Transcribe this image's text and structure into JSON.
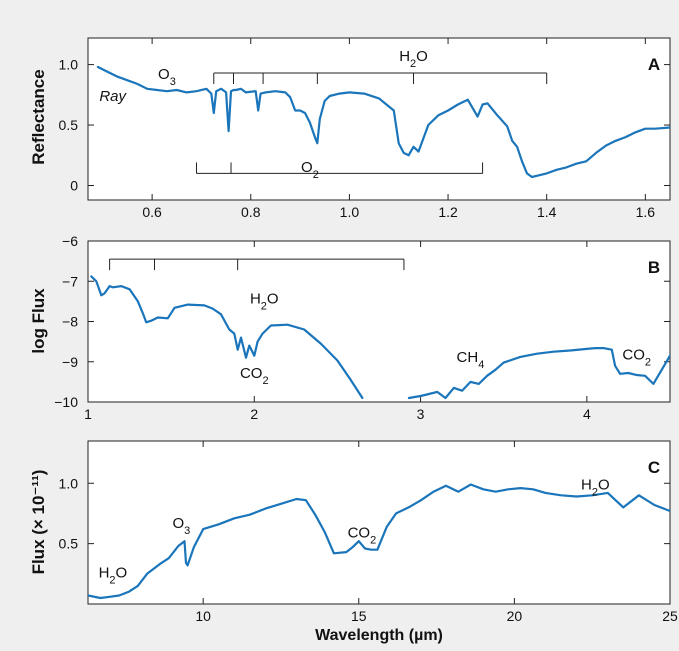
{
  "chart_data": [
    {
      "panel": "A",
      "type": "line",
      "ylabel": "Reflectance",
      "xlim": [
        0.47,
        1.65
      ],
      "ylim": [
        -0.12,
        1.22
      ],
      "xticks": [
        0.6,
        0.8,
        1.0,
        1.2,
        1.4,
        1.6
      ],
      "xtick_labels": [
        "0.6",
        "0.8",
        "1.0",
        "1.2",
        "1.4",
        "1.6"
      ],
      "yticks": [
        0,
        0.5,
        1.0
      ],
      "ytick_labels": [
        "0",
        "0.5",
        "1.0"
      ],
      "series": [
        {
          "x": [
            0.49,
            0.51,
            0.53,
            0.55,
            0.57,
            0.59,
            0.61,
            0.63,
            0.65,
            0.67,
            0.69,
            0.71,
            0.72,
            0.725,
            0.73,
            0.74,
            0.75,
            0.755,
            0.76,
            0.765,
            0.77,
            0.78,
            0.79,
            0.81,
            0.815,
            0.82,
            0.83,
            0.85,
            0.87,
            0.88,
            0.89,
            0.9,
            0.91,
            0.92,
            0.93,
            0.935,
            0.94,
            0.95,
            0.96,
            0.98,
            1.0,
            1.03,
            1.06,
            1.09,
            1.1,
            1.11,
            1.12,
            1.13,
            1.14,
            1.16,
            1.18,
            1.2,
            1.22,
            1.24,
            1.26,
            1.27,
            1.28,
            1.3,
            1.32,
            1.33,
            1.34,
            1.35,
            1.36,
            1.37,
            1.38,
            1.4,
            1.42,
            1.44,
            1.46,
            1.48,
            1.5,
            1.52,
            1.54,
            1.56,
            1.58,
            1.6,
            1.62,
            1.65
          ],
          "y": [
            0.98,
            0.94,
            0.9,
            0.87,
            0.84,
            0.8,
            0.79,
            0.78,
            0.79,
            0.77,
            0.78,
            0.8,
            0.76,
            0.6,
            0.78,
            0.8,
            0.77,
            0.45,
            0.78,
            0.79,
            0.79,
            0.8,
            0.77,
            0.78,
            0.62,
            0.76,
            0.77,
            0.78,
            0.77,
            0.73,
            0.62,
            0.62,
            0.6,
            0.52,
            0.4,
            0.35,
            0.55,
            0.7,
            0.74,
            0.76,
            0.77,
            0.76,
            0.72,
            0.62,
            0.35,
            0.27,
            0.25,
            0.32,
            0.28,
            0.5,
            0.58,
            0.62,
            0.67,
            0.71,
            0.57,
            0.67,
            0.68,
            0.58,
            0.49,
            0.37,
            0.32,
            0.2,
            0.1,
            0.07,
            0.08,
            0.1,
            0.13,
            0.15,
            0.18,
            0.2,
            0.27,
            0.33,
            0.37,
            0.4,
            0.44,
            0.47,
            0.47,
            0.48
          ]
        }
      ],
      "annotations": [
        {
          "text": "Ray",
          "x": 0.52,
          "y": 0.7,
          "italic": true
        },
        {
          "text": "O",
          "sub": "3",
          "x": 0.63,
          "y": 0.88
        },
        {
          "text": "H",
          "sub": "2",
          "tail": "O",
          "x": 1.13,
          "y": 1.03
        },
        {
          "text": "O",
          "sub": "2",
          "x": 0.92,
          "y": 0.11
        }
      ],
      "brackets": [
        {
          "span": [
            0.725,
            1.4
          ],
          "ticks": [
            0.725,
            0.765,
            0.825,
            0.935,
            1.13,
            1.4
          ],
          "y": 0.93,
          "direction": "down"
        },
        {
          "span": [
            0.69,
            1.27
          ],
          "ticks": [
            0.69,
            0.76,
            1.27
          ],
          "y": 0.1,
          "direction": "up"
        }
      ],
      "letter": "A"
    },
    {
      "panel": "B",
      "type": "line",
      "ylabel": "log Flux",
      "xlim": [
        1.0,
        4.5
      ],
      "ylim": [
        -10,
        -6
      ],
      "xticks": [
        1,
        2,
        3,
        4
      ],
      "xtick_labels": [
        "1",
        "2",
        "3",
        "4"
      ],
      "yticks": [
        -10,
        -9,
        -8,
        -7,
        -6
      ],
      "ytick_labels": [
        "−10",
        "−9",
        "−8",
        "−7",
        "−6"
      ],
      "series": [
        {
          "x": [
            1.02,
            1.05,
            1.08,
            1.1,
            1.13,
            1.15,
            1.2,
            1.25,
            1.3,
            1.33,
            1.35,
            1.38,
            1.42,
            1.48,
            1.52,
            1.6,
            1.7,
            1.75,
            1.8,
            1.85,
            1.88,
            1.9,
            1.92,
            1.95,
            1.97,
            2.0,
            2.02,
            2.05,
            2.1,
            2.2,
            2.3,
            2.4,
            2.5,
            2.58,
            2.65
          ],
          "y": [
            -6.88,
            -7.0,
            -7.35,
            -7.3,
            -7.12,
            -7.15,
            -7.12,
            -7.2,
            -7.5,
            -7.8,
            -8.02,
            -7.98,
            -7.9,
            -7.92,
            -7.66,
            -7.58,
            -7.6,
            -7.68,
            -7.82,
            -8.2,
            -8.3,
            -8.7,
            -8.4,
            -8.9,
            -8.6,
            -8.85,
            -8.5,
            -8.3,
            -8.1,
            -8.08,
            -8.2,
            -8.55,
            -8.97,
            -9.45,
            -9.9
          ]
        },
        {
          "x": [
            2.93,
            3.0,
            3.05,
            3.1,
            3.15,
            3.2,
            3.25,
            3.3,
            3.35,
            3.4,
            3.45,
            3.5,
            3.6,
            3.7,
            3.8,
            3.9,
            4.0,
            4.05,
            4.1,
            4.15,
            4.17,
            4.2,
            4.25,
            4.3,
            4.35,
            4.4,
            4.45,
            4.5
          ],
          "y": [
            -9.9,
            -9.85,
            -9.8,
            -9.75,
            -9.9,
            -9.65,
            -9.72,
            -9.5,
            -9.55,
            -9.35,
            -9.2,
            -9.02,
            -8.88,
            -8.8,
            -8.75,
            -8.72,
            -8.68,
            -8.66,
            -8.66,
            -8.7,
            -9.1,
            -9.3,
            -9.28,
            -9.33,
            -9.35,
            -9.55,
            -9.2,
            -8.85
          ]
        }
      ],
      "annotations": [
        {
          "text": "H",
          "sub": "2",
          "tail": "O",
          "x": 2.06,
          "y": -7.55
        },
        {
          "text": "CO",
          "sub": "2",
          "x": 2.0,
          "y": -9.4
        },
        {
          "text": "CH",
          "sub": "4",
          "x": 3.3,
          "y": -9.0
        },
        {
          "text": "CO",
          "sub": "2",
          "x": 4.3,
          "y": -8.95
        }
      ],
      "brackets": [
        {
          "span": [
            1.13,
            2.9
          ],
          "ticks": [
            1.13,
            1.4,
            1.9,
            2.9
          ],
          "y": -6.45,
          "direction": "down"
        }
      ],
      "letter": "B"
    },
    {
      "panel": "C",
      "type": "line",
      "xlabel": "Wavelength (µm)",
      "ylabel": "Flux (× 10⁻¹¹)",
      "xlim": [
        6.3,
        25
      ],
      "ylim": [
        0.0,
        1.35
      ],
      "xticks": [
        10,
        15,
        20,
        25
      ],
      "xtick_labels": [
        "10",
        "15",
        "20",
        "25"
      ],
      "yticks": [
        0.5,
        1.0
      ],
      "ytick_labels": [
        "0.5",
        "1.0"
      ],
      "series": [
        {
          "x": [
            6.3,
            6.7,
            7.0,
            7.3,
            7.6,
            7.9,
            8.2,
            8.6,
            8.9,
            9.2,
            9.4,
            9.45,
            9.5,
            9.7,
            10.0,
            10.5,
            11.0,
            11.5,
            12.0,
            12.5,
            13.0,
            13.3,
            13.6,
            13.9,
            14.2,
            14.6,
            14.8,
            15.0,
            15.2,
            15.4,
            15.6,
            15.9,
            16.2,
            16.6,
            17.0,
            17.4,
            17.8,
            18.2,
            18.6,
            19.0,
            19.4,
            19.8,
            20.2,
            20.6,
            21.0,
            21.5,
            22.0,
            22.5,
            23.0,
            23.5,
            24.0,
            24.5,
            25.0
          ],
          "y": [
            0.07,
            0.05,
            0.06,
            0.07,
            0.1,
            0.15,
            0.25,
            0.33,
            0.38,
            0.48,
            0.52,
            0.34,
            0.32,
            0.47,
            0.62,
            0.66,
            0.71,
            0.74,
            0.79,
            0.83,
            0.87,
            0.86,
            0.74,
            0.6,
            0.42,
            0.43,
            0.47,
            0.52,
            0.46,
            0.45,
            0.45,
            0.64,
            0.75,
            0.8,
            0.86,
            0.93,
            0.98,
            0.93,
            0.99,
            0.95,
            0.93,
            0.95,
            0.96,
            0.95,
            0.92,
            0.9,
            0.89,
            0.9,
            0.92,
            0.8,
            0.9,
            0.82,
            0.77
          ]
        }
      ],
      "annotations": [
        {
          "text": "H",
          "sub": "2",
          "tail": "O",
          "x": 7.1,
          "y": 0.22
        },
        {
          "text": "O",
          "sub": "3",
          "x": 9.3,
          "y": 0.63
        },
        {
          "text": "CO",
          "sub": "2",
          "x": 15.1,
          "y": 0.55
        },
        {
          "text": "H",
          "sub": "2",
          "tail": "O",
          "x": 22.6,
          "y": 0.95
        }
      ],
      "brackets": [],
      "letter": "C"
    }
  ]
}
